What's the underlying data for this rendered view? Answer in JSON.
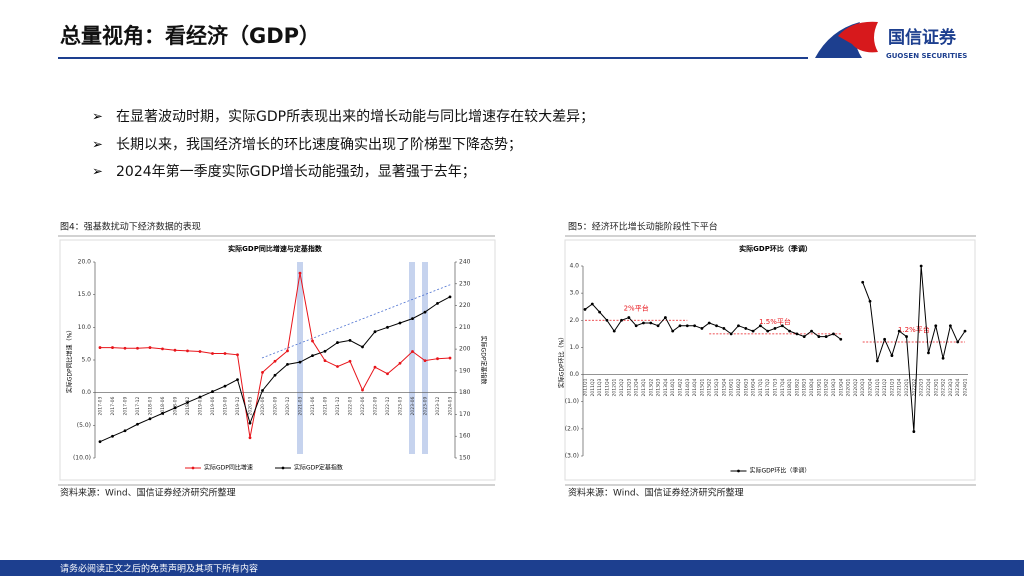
{
  "header": {
    "title": "总量视角：看经济（GDP）",
    "logo_cn": "国信证券",
    "logo_en": "GUOSEN SECURITIES"
  },
  "bullets": [
    "在显著波动时期，实际GDP所表现出来的增长动能与同比增速存在较大差异；",
    "长期以来，我国经济增长的环比速度确实出现了阶梯型下降态势；",
    "2024年第一季度实际GDP增长动能强劲，显著强于去年；"
  ],
  "figures": [
    {
      "caption": "图4：强基数扰动下经济数据的表现",
      "source": "资料来源：Wind、国信证券经济研究所整理"
    },
    {
      "caption": "图5：经济环比增长动能阶段性下平台",
      "source": "资料来源：Wind、国信证券经济研究所整理"
    }
  ],
  "footer": "请务必阅读正文之后的免责声明及其项下所有内容",
  "chart_data": [
    {
      "type": "line",
      "title": "实际GDP同比增速与定基指数",
      "ylabel": "实际GDP同比增速（%）",
      "y2label": "实际GDP定基指数",
      "legend": "bottom",
      "categories": [
        "2017-03",
        "2017-06",
        "2017-09",
        "2017-12",
        "2018-03",
        "2018-06",
        "2018-09",
        "2018-12",
        "2019-03",
        "2019-06",
        "2019-09",
        "2019-12",
        "2020-03",
        "2020-06",
        "2020-09",
        "2020-12",
        "2021-03",
        "2021-06",
        "2021-09",
        "2021-12",
        "2022-03",
        "2022-06",
        "2022-09",
        "2022-12",
        "2023-03",
        "2023-06",
        "2023-09",
        "2023-12",
        "2024-03"
      ],
      "series": [
        {
          "name": "实际GDP同比增速",
          "color": "#e8141a",
          "values": [
            6.9,
            6.9,
            6.8,
            6.8,
            6.9,
            6.7,
            6.5,
            6.4,
            6.3,
            6.0,
            6.0,
            5.8,
            -6.9,
            3.1,
            4.8,
            6.4,
            18.3,
            7.9,
            4.9,
            4.0,
            4.8,
            0.4,
            3.9,
            2.9,
            4.5,
            6.3,
            4.9,
            5.2,
            5.3
          ]
        },
        {
          "name": "实际GDP定基指数",
          "color": "#000000",
          "axis": "y2",
          "values": [
            157.5,
            160,
            162.5,
            165.5,
            168,
            170.5,
            173,
            175.5,
            178,
            180.5,
            183,
            186,
            166,
            181,
            188,
            193,
            194,
            197,
            199,
            203,
            204,
            201,
            208,
            210,
            212,
            214,
            217,
            221,
            224
          ]
        }
      ],
      "ylim": [
        -10,
        20
      ],
      "yticks": [
        {
          "value": 20,
          "label": "20.0"
        },
        {
          "value": 15,
          "label": "15.0"
        },
        {
          "value": 10,
          "label": "10.0"
        },
        {
          "value": 5,
          "label": "5.0"
        },
        {
          "value": 0,
          "label": "0.0"
        },
        {
          "value": -5,
          "label": "(5.0)"
        },
        {
          "value": -10,
          "label": "(10.0)"
        }
      ],
      "y2lim": [
        150,
        240
      ],
      "y2ticks": [
        150,
        160,
        170,
        180,
        190,
        200,
        210,
        220,
        230,
        240
      ]
    },
    {
      "type": "line",
      "title": "实际GDP环比（季调）",
      "ylabel": "实际GDP环比（%）",
      "legend": "bottom",
      "categories": [
        "2011Q1",
        "2011Q2",
        "2011Q3",
        "2011Q4",
        "2012Q1",
        "2012Q2",
        "2012Q3",
        "2012Q4",
        "2013Q1",
        "2013Q2",
        "2013Q3",
        "2013Q4",
        "2014Q1",
        "2014Q2",
        "2014Q3",
        "2014Q4",
        "2015Q1",
        "2015Q2",
        "2015Q3",
        "2015Q4",
        "2016Q1",
        "2016Q2",
        "2016Q3",
        "2016Q4",
        "2017Q1",
        "2017Q2",
        "2017Q3",
        "2017Q4",
        "2018Q1",
        "2018Q2",
        "2018Q3",
        "2018Q4",
        "2019Q1",
        "2019Q2",
        "2019Q3",
        "2019Q4",
        "2020Q1",
        "2020Q2",
        "2020Q3",
        "2020Q4",
        "2021Q1",
        "2021Q2",
        "2021Q3",
        "2021Q4",
        "2022Q1",
        "2022Q2",
        "2022Q3",
        "2022Q4",
        "2023Q1",
        "2023Q2",
        "2023Q3",
        "2023Q4",
        "2024Q1"
      ],
      "series": [
        {
          "name": "实际GDP环比（季调）",
          "color": "#000000",
          "values": [
            2.4,
            2.6,
            2.3,
            2.0,
            1.6,
            2.0,
            2.1,
            1.8,
            1.9,
            1.9,
            1.8,
            2.1,
            1.6,
            1.8,
            1.8,
            1.8,
            1.7,
            1.9,
            1.8,
            1.7,
            1.5,
            1.8,
            1.7,
            1.6,
            1.8,
            1.6,
            1.7,
            1.8,
            1.6,
            1.5,
            1.4,
            1.6,
            1.4,
            1.4,
            1.5,
            1.3,
            null,
            null,
            3.4,
            2.7,
            0.5,
            1.3,
            0.7,
            1.6,
            1.4,
            -2.1,
            4.0,
            0.8,
            1.8,
            0.6,
            1.8,
            1.2,
            1.6
          ]
        }
      ],
      "ylim": [
        -3,
        4
      ],
      "yticks": [
        {
          "value": 4,
          "label": "4.0"
        },
        {
          "value": 3,
          "label": "3.0"
        },
        {
          "value": 2,
          "label": "2.0"
        },
        {
          "value": 1,
          "label": "1.0"
        },
        {
          "value": 0,
          "label": "0.0"
        },
        {
          "value": -1,
          "label": "(1.0)"
        },
        {
          "value": -2,
          "label": "(2.0)"
        },
        {
          "value": -3,
          "label": "(3.0)"
        }
      ],
      "annotations": [
        {
          "text": "2%平台",
          "value": 2,
          "start": "2011Q1",
          "end": "2014Q3"
        },
        {
          "text": "1.5%平台",
          "value": 1.5,
          "start": "2015Q2",
          "end": "2019Q4"
        },
        {
          "text": "1.2%平台",
          "value": 1.2,
          "start": "2020Q3",
          "end": "2024Q1"
        }
      ]
    }
  ]
}
